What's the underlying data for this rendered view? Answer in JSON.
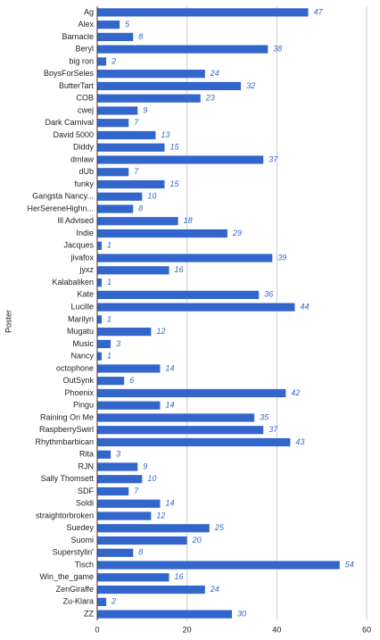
{
  "chart_data": {
    "type": "bar",
    "orientation": "horizontal",
    "y_label": "Poster",
    "categories": [
      "Ag",
      "Alex",
      "Barnacle",
      "Beryl",
      "big ron",
      "BoysForSeles",
      "ButterTart",
      "COB",
      "cwej",
      "Dark Carnival",
      "David 5000",
      "Diddy",
      "dmlaw",
      "dUb",
      "funky",
      "Gangsta Nancy...",
      "HerSereneHighn...",
      "Ill Advised",
      "Indie",
      "Jacques",
      "jivafox",
      "jyxz",
      "Kalabaliken",
      "Kate",
      "Lucille",
      "Marilyn",
      "Mugatu",
      "Music",
      "Nancy",
      "octophone",
      "OutSynk",
      "Phoenix",
      "Pingu",
      "Raining On Me",
      "RaspberrySwirl",
      "Rhythmbarbican",
      "Rita",
      "RJN",
      "Sally Thomsett",
      "SDF",
      "Soldi",
      "straightorbroken",
      "Suedey",
      "Suomi",
      "Superstylin'",
      "Tisch",
      "Win_the_game",
      "ZenGiraffe",
      "Zu-Klara",
      "ZZ"
    ],
    "values": [
      47,
      5,
      8,
      38,
      2,
      24,
      32,
      23,
      9,
      7,
      13,
      15,
      37,
      7,
      15,
      10,
      8,
      18,
      29,
      1,
      39,
      16,
      1,
      36,
      44,
      1,
      12,
      3,
      1,
      14,
      6,
      42,
      14,
      35,
      37,
      43,
      3,
      9,
      10,
      7,
      14,
      12,
      25,
      20,
      8,
      54,
      16,
      24,
      2,
      30
    ],
    "color": "#3366cc",
    "xlim": [
      0,
      60
    ],
    "xticks": [
      0,
      20,
      40,
      60
    ],
    "grid": true
  }
}
